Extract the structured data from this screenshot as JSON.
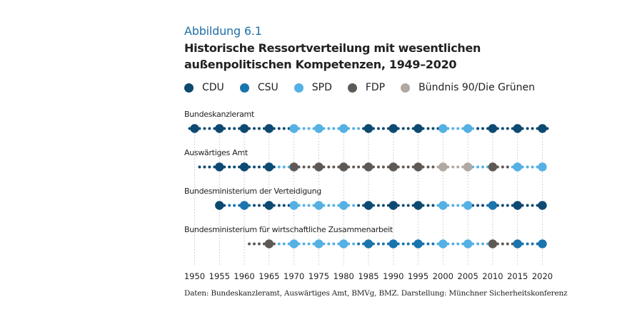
{
  "figure_label": "Abbildung 6.1",
  "title_line1": "Historische Ressortverteilung mit wesentlichen",
  "title_line2": "außenpolitischen Kompetenzen, 1949–2020",
  "source": "Daten: Bundeskanzleramt, Auswärtiges Amt, BMVg, BMZ. Darstellung: Münchner Sicherheitskonferenz",
  "chart_data": {
    "type": "scatter",
    "title": "Historische Ressortverteilung mit wesentlichen außenpolitischen Kompetenzen, 1949–2020",
    "xlabel": "",
    "ylabel": "",
    "xlim": [
      1949,
      2020
    ],
    "x_ticks": [
      1950,
      1955,
      1960,
      1965,
      1970,
      1975,
      1980,
      1985,
      1990,
      1995,
      2000,
      2005,
      2010,
      2015,
      2020
    ],
    "grid": "vertical-dotted",
    "legend_position": "top",
    "legend": [
      {
        "key": "CDU",
        "label": "CDU",
        "color": "#0d4a72"
      },
      {
        "key": "CSU",
        "label": "CSU",
        "color": "#1a74ad"
      },
      {
        "key": "SPD",
        "label": "SPD",
        "color": "#55b1e3"
      },
      {
        "key": "FDP",
        "label": "FDP",
        "color": "#5e5954"
      },
      {
        "key": "GRUENE",
        "label": "Bündnis 90/Die Grünen",
        "color": "#b0a8a1"
      }
    ],
    "series": [
      {
        "name": "Bundeskanzleramt",
        "start_year": 1949,
        "parties": [
          "CDU",
          "CDU",
          "CDU",
          "CDU",
          "CDU",
          "CDU",
          "CDU",
          "CDU",
          "CDU",
          "CDU",
          "CDU",
          "CDU",
          "CDU",
          "CDU",
          "CDU",
          "CDU",
          "CDU",
          "CDU",
          "CDU",
          "CDU",
          "CDU",
          "SPD",
          "SPD",
          "SPD",
          "SPD",
          "SPD",
          "SPD",
          "SPD",
          "SPD",
          "SPD",
          "SPD",
          "SPD",
          "SPD",
          "SPD",
          "SPD",
          "CDU",
          "CDU",
          "CDU",
          "CDU",
          "CDU",
          "CDU",
          "CDU",
          "CDU",
          "CDU",
          "CDU",
          "CDU",
          "CDU",
          "CDU",
          "CDU",
          "CDU",
          "CDU",
          "SPD",
          "SPD",
          "SPD",
          "SPD",
          "SPD",
          "SPD",
          "SPD",
          "CDU",
          "CDU",
          "CDU",
          "CDU",
          "CDU",
          "CDU",
          "CDU",
          "CDU",
          "CDU",
          "CDU",
          "CDU",
          "CDU",
          "CDU",
          "CDU",
          "CDU"
        ]
      },
      {
        "name": "Auswärtiges Amt",
        "start_year": 1951,
        "parties": [
          "CDU",
          "CDU",
          "CDU",
          "CDU",
          "CDU",
          "CDU",
          "CDU",
          "CDU",
          "CDU",
          "CDU",
          "CDU",
          "CDU",
          "CDU",
          "CDU",
          "CDU",
          "CDU",
          "SPD",
          "SPD",
          "SPD",
          "FDP",
          "FDP",
          "FDP",
          "FDP",
          "FDP",
          "FDP",
          "FDP",
          "FDP",
          "FDP",
          "FDP",
          "FDP",
          "FDP",
          "FDP",
          "FDP",
          "FDP",
          "FDP",
          "FDP",
          "FDP",
          "FDP",
          "FDP",
          "FDP",
          "FDP",
          "FDP",
          "FDP",
          "FDP",
          "FDP",
          "FDP",
          "FDP",
          "FDP",
          "GRUENE",
          "GRUENE",
          "GRUENE",
          "GRUENE",
          "GRUENE",
          "GRUENE",
          "GRUENE",
          "SPD",
          "SPD",
          "SPD",
          "SPD",
          "FDP",
          "FDP",
          "FDP",
          "FDP",
          "SPD",
          "SPD",
          "SPD",
          "SPD",
          "SPD",
          "SPD",
          "SPD"
        ]
      },
      {
        "name": "Bundesministerium der Verteidigung",
        "start_year": 1955,
        "parties": [
          "CDU",
          "CDU",
          "CSU",
          "CSU",
          "CSU",
          "CSU",
          "CSU",
          "CDU",
          "CDU",
          "CDU",
          "CDU",
          "CDU",
          "CDU",
          "CDU",
          "CDU",
          "SPD",
          "SPD",
          "SPD",
          "SPD",
          "SPD",
          "SPD",
          "SPD",
          "SPD",
          "SPD",
          "SPD",
          "SPD",
          "SPD",
          "SPD",
          "CDU",
          "CDU",
          "CDU",
          "CDU",
          "CDU",
          "CDU",
          "CDU",
          "CDU",
          "CDU",
          "CDU",
          "CDU",
          "CDU",
          "CDU",
          "CDU",
          "CDU",
          "CDU",
          "SPD",
          "SPD",
          "SPD",
          "SPD",
          "SPD",
          "SPD",
          "SPD",
          "CDU",
          "CDU",
          "CDU",
          "CSU",
          "CSU",
          "CDU",
          "CDU",
          "CDU",
          "CDU",
          "CDU",
          "CDU",
          "CDU",
          "CDU",
          "CDU",
          "CDU"
        ]
      },
      {
        "name": "Bundesministerium für wirtschaftliche Zusammenarbeit",
        "start_year": 1961,
        "parties": [
          "FDP",
          "FDP",
          "FDP",
          "FDP",
          "FDP",
          "FDP",
          "SPD",
          "SPD",
          "SPD",
          "SPD",
          "SPD",
          "SPD",
          "SPD",
          "SPD",
          "SPD",
          "SPD",
          "SPD",
          "SPD",
          "SPD",
          "SPD",
          "SPD",
          "SPD",
          "CSU",
          "CSU",
          "CSU",
          "CSU",
          "CSU",
          "CSU",
          "CSU",
          "CSU",
          "CSU",
          "CSU",
          "CSU",
          "CSU",
          "CSU",
          "CSU",
          "CSU",
          "CSU",
          "SPD",
          "SPD",
          "SPD",
          "SPD",
          "SPD",
          "SPD",
          "SPD",
          "SPD",
          "SPD",
          "SPD",
          "SPD",
          "FDP",
          "FDP",
          "FDP",
          "FDP",
          "FDP",
          "CSU",
          "CSU",
          "CSU",
          "CSU",
          "CSU",
          "CSU"
        ]
      }
    ],
    "major_marker_years": [
      1950,
      1955,
      1960,
      1965,
      1970,
      1975,
      1980,
      1985,
      1990,
      1995,
      2000,
      2005,
      2010,
      2015,
      2020
    ]
  }
}
